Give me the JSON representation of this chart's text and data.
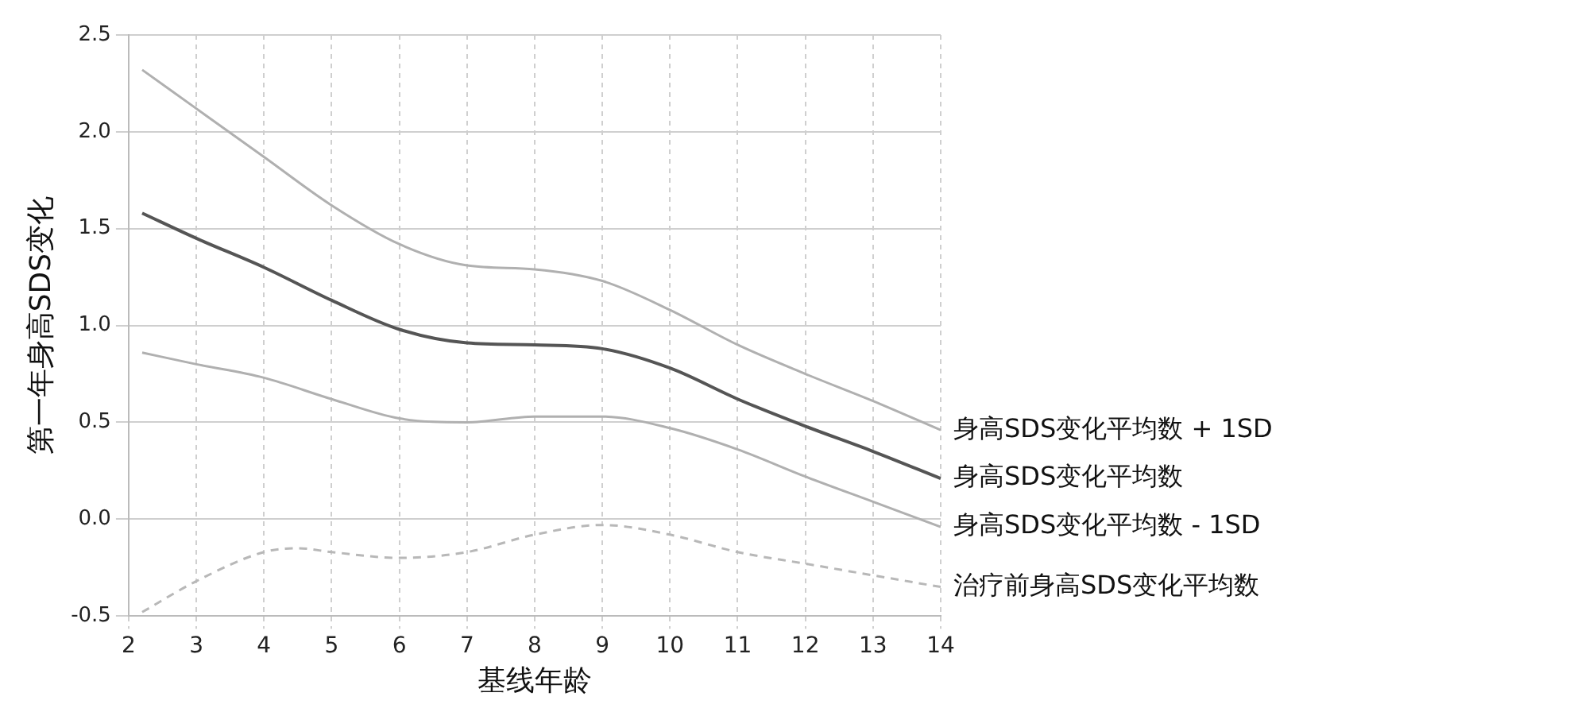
{
  "chart_data": {
    "type": "line",
    "xlabel": "基线年龄",
    "ylabel": "第一年身高SDS变化",
    "xlim": [
      2,
      14
    ],
    "xticks": [
      2,
      3,
      4,
      5,
      6,
      7,
      8,
      9,
      10,
      11,
      12,
      13,
      14
    ],
    "ylim": [
      -0.5,
      2.5
    ],
    "yticks": [
      -0.5,
      {
        "value": 0,
        "label": "0.0"
      },
      0.5,
      {
        "value": 1,
        "label": "1.0"
      },
      1.5,
      {
        "value": 2,
        "label": "2.0"
      },
      2.5
    ],
    "grid": true,
    "legend": false,
    "marker": "none",
    "x": [
      2.2,
      3,
      4,
      5,
      6,
      7,
      8,
      9,
      10,
      11,
      12,
      13,
      14
    ],
    "series": [
      {
        "name": "身高SDS变化平均数 + 1SD",
        "color": "#b0b0b0",
        "line_style": "solid",
        "values": [
          2.32,
          2.12,
          1.87,
          1.62,
          1.42,
          1.31,
          1.29,
          1.23,
          1.08,
          0.9,
          0.75,
          0.61,
          0.46
        ]
      },
      {
        "name": "身高SDS变化平均数",
        "color": "#555555",
        "line_style": "solid",
        "values": [
          1.58,
          1.45,
          1.3,
          1.13,
          0.98,
          0.91,
          0.9,
          0.88,
          0.78,
          0.62,
          0.48,
          0.35,
          0.21
        ]
      },
      {
        "name": "身高SDS变化平均数 - 1SD",
        "color": "#b0b0b0",
        "line_style": "solid",
        "values": [
          0.86,
          0.8,
          0.73,
          0.62,
          0.52,
          0.5,
          0.53,
          0.53,
          0.47,
          0.36,
          0.22,
          0.09,
          -0.04
        ]
      },
      {
        "name": "治疗前身高SDS变化平均数",
        "color": "#b8b8b8",
        "line_style": "dashed",
        "x": [
          2.2,
          3,
          4,
          4.5,
          5,
          6,
          7,
          8,
          9,
          10,
          11,
          12,
          13,
          14
        ],
        "values": [
          -0.48,
          -0.32,
          -0.17,
          -0.15,
          -0.17,
          -0.2,
          -0.17,
          -0.08,
          -0.03,
          -0.08,
          -0.17,
          -0.23,
          -0.29,
          -0.35
        ]
      }
    ]
  }
}
